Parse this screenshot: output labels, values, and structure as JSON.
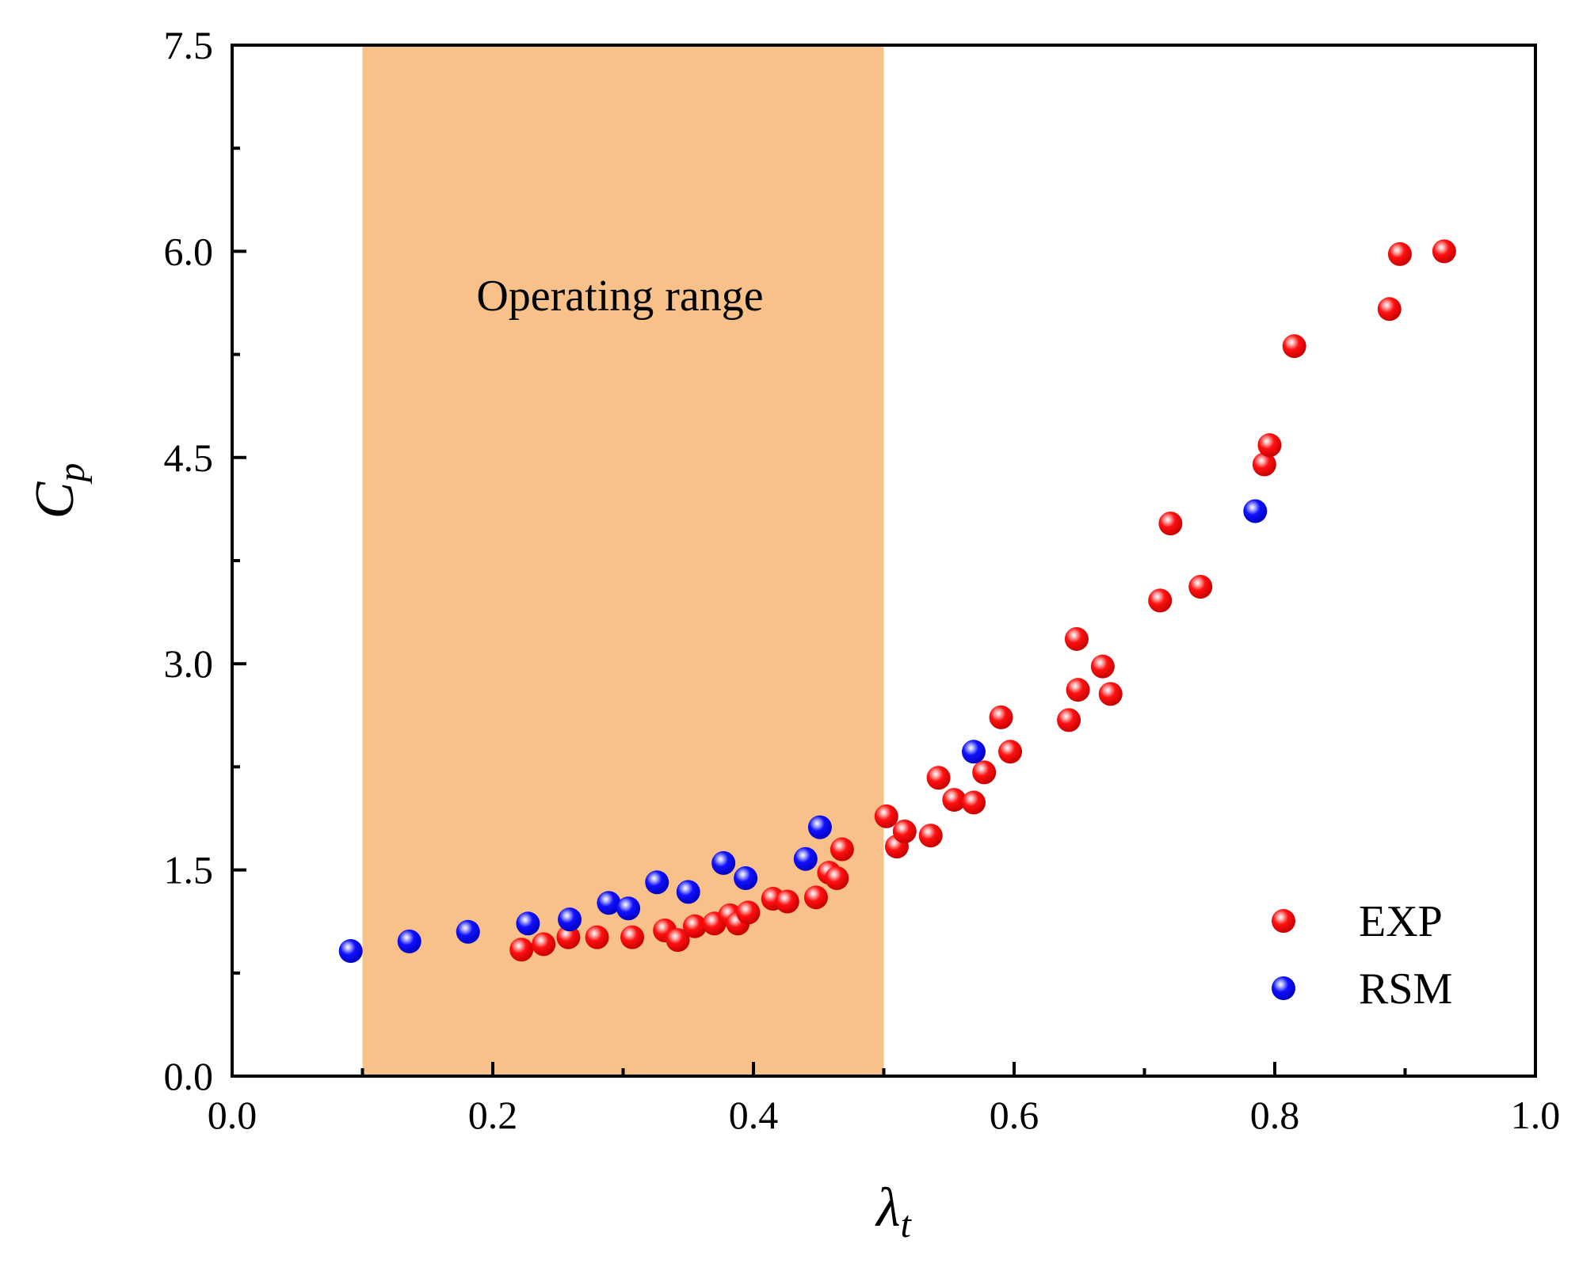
{
  "chart_data": {
    "type": "scatter",
    "title": "",
    "xlabel": "λ",
    "xlabel_subscript": "t",
    "ylabel": "C",
    "ylabel_subscript": "p",
    "xlim": [
      0.0,
      1.0
    ],
    "ylim": [
      0.0,
      7.5
    ],
    "x_ticks": [
      0.0,
      0.2,
      0.4,
      0.6,
      0.8,
      1.0
    ],
    "x_tick_labels": [
      "0.0",
      "0.2",
      "0.4",
      "0.6",
      "0.8",
      "1.0"
    ],
    "y_ticks": [
      0.0,
      1.5,
      3.0,
      4.5,
      6.0,
      7.5
    ],
    "y_tick_labels": [
      "0.0",
      "1.5",
      "3.0",
      "4.5",
      "6.0",
      "7.5"
    ],
    "grid": false,
    "legend_position": "bottom-right",
    "shaded_region": {
      "label": "Operating range",
      "x_from": 0.1,
      "x_to": 0.5,
      "color": "#f9c18a"
    },
    "series": [
      {
        "name": "EXP",
        "color": "#ff0000",
        "points": [
          [
            0.222,
            0.92
          ],
          [
            0.239,
            0.96
          ],
          [
            0.258,
            1.01
          ],
          [
            0.28,
            1.01
          ],
          [
            0.307,
            1.01
          ],
          [
            0.332,
            1.06
          ],
          [
            0.342,
            0.99
          ],
          [
            0.355,
            1.09
          ],
          [
            0.37,
            1.11
          ],
          [
            0.382,
            1.17
          ],
          [
            0.388,
            1.11
          ],
          [
            0.396,
            1.19
          ],
          [
            0.415,
            1.29
          ],
          [
            0.426,
            1.27
          ],
          [
            0.448,
            1.3
          ],
          [
            0.458,
            1.48
          ],
          [
            0.464,
            1.44
          ],
          [
            0.468,
            1.65
          ],
          [
            0.502,
            1.89
          ],
          [
            0.51,
            1.67
          ],
          [
            0.516,
            1.78
          ],
          [
            0.536,
            1.75
          ],
          [
            0.542,
            2.17
          ],
          [
            0.554,
            2.01
          ],
          [
            0.569,
            1.99
          ],
          [
            0.577,
            2.21
          ],
          [
            0.59,
            2.61
          ],
          [
            0.597,
            2.36
          ],
          [
            0.642,
            2.59
          ],
          [
            0.648,
            3.18
          ],
          [
            0.649,
            2.81
          ],
          [
            0.668,
            2.98
          ],
          [
            0.674,
            2.78
          ],
          [
            0.712,
            3.46
          ],
          [
            0.72,
            4.02
          ],
          [
            0.743,
            3.56
          ],
          [
            0.792,
            4.45
          ],
          [
            0.796,
            4.59
          ],
          [
            0.815,
            5.31
          ],
          [
            0.888,
            5.58
          ],
          [
            0.896,
            5.98
          ],
          [
            0.93,
            6.0
          ]
        ]
      },
      {
        "name": "RSM",
        "color": "#0000ff",
        "points": [
          [
            0.091,
            0.91
          ],
          [
            0.136,
            0.98
          ],
          [
            0.181,
            1.05
          ],
          [
            0.227,
            1.11
          ],
          [
            0.259,
            1.14
          ],
          [
            0.289,
            1.26
          ],
          [
            0.304,
            1.22
          ],
          [
            0.326,
            1.41
          ],
          [
            0.35,
            1.34
          ],
          [
            0.377,
            1.55
          ],
          [
            0.394,
            1.44
          ],
          [
            0.44,
            1.58
          ],
          [
            0.451,
            1.81
          ],
          [
            0.569,
            2.36
          ],
          [
            0.785,
            4.11
          ]
        ]
      }
    ]
  }
}
